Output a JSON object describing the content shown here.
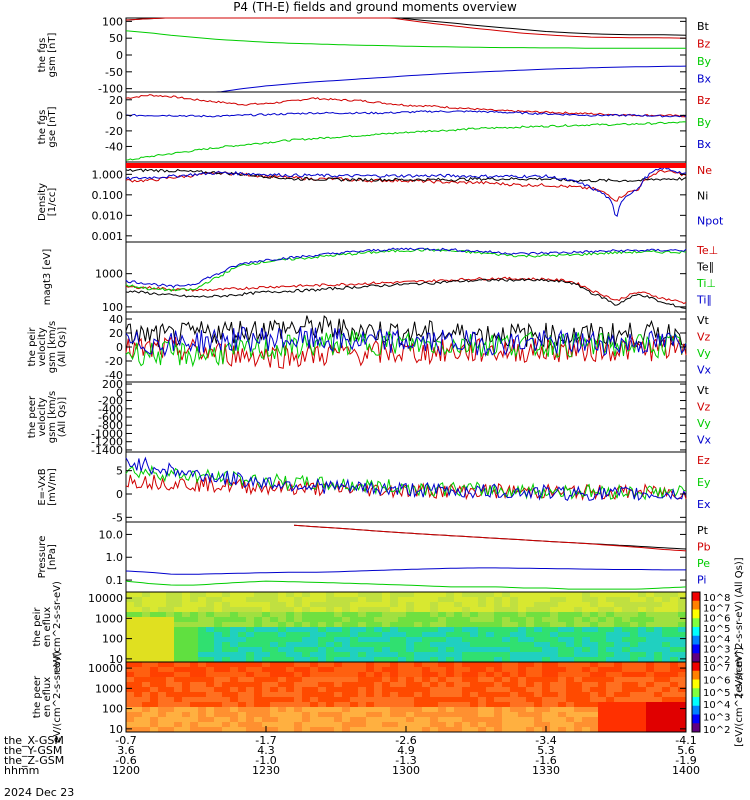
{
  "title": "P4 (TH-E) fields and ground moments overview",
  "chart_data": [
    {
      "type": "line",
      "name": "fgs_gsm",
      "ylabel": "the fgs gsm [nT]",
      "ylim": [
        -110,
        110
      ],
      "yticks": [
        "100",
        "50",
        "0",
        "-50",
        "-100"
      ],
      "ytick_values": [
        100,
        50,
        0,
        -50,
        -100
      ],
      "series": [
        {
          "name": "Bt",
          "color": "#000000",
          "values": [
            104,
            108,
            111,
            113,
            116,
            119,
            122,
            124,
            126,
            127,
            124,
            117,
            108,
            101,
            95,
            88,
            82,
            76,
            70,
            66,
            63,
            61,
            60,
            60,
            59
          ]
        },
        {
          "name": "Bz",
          "color": "#d00000",
          "values": [
            104,
            108,
            111,
            113,
            116,
            119,
            122,
            124,
            126,
            127,
            122,
            114,
            104,
            95,
            87,
            79,
            72,
            65,
            60,
            56,
            53,
            52,
            51,
            51,
            50
          ]
        },
        {
          "name": "By",
          "color": "#00cc00",
          "values": [
            72,
            66,
            58,
            52,
            46,
            42,
            38,
            35,
            33,
            31,
            29,
            28,
            26,
            25,
            24,
            23,
            22,
            22,
            21,
            21,
            20,
            20,
            20,
            20,
            20
          ]
        },
        {
          "name": "Bx",
          "color": "#0000cc",
          "values": [
            -112,
            -112,
            -111,
            -111,
            -110,
            -100,
            -92,
            -86,
            -80,
            -76,
            -71,
            -67,
            -62,
            -58,
            -54,
            -51,
            -48,
            -45,
            -42,
            -40,
            -38,
            -36,
            -35,
            -34,
            -33
          ]
        }
      ]
    },
    {
      "type": "line",
      "name": "fgs_gse",
      "ylabel": "the fgs gse [nT]",
      "ylim": [
        -60,
        30
      ],
      "yticks": [
        "20",
        "0",
        "-20",
        "-40"
      ],
      "ytick_values": [
        20,
        0,
        -20,
        -40
      ],
      "series": [
        {
          "name": "Bz",
          "color": "#d00000",
          "values": [
            22,
            26,
            24,
            20,
            17,
            14,
            15,
            18,
            22,
            20,
            19,
            16,
            13,
            12,
            10,
            8,
            6,
            5,
            4,
            3,
            2,
            1,
            0,
            0,
            -1
          ]
        },
        {
          "name": "By",
          "color": "#00cc00",
          "values": [
            -58,
            -53,
            -49,
            -45,
            -41,
            -38,
            -35,
            -32,
            -30,
            -28,
            -26,
            -24,
            -22,
            -20,
            -19,
            -17,
            -16,
            -15,
            -14,
            -13,
            -12,
            -12,
            -11,
            -10,
            -9
          ]
        },
        {
          "name": "Bx",
          "color": "#0000cc",
          "values": [
            0,
            0,
            0,
            -1,
            -1,
            0,
            1,
            2,
            3,
            3,
            3,
            3,
            4,
            5,
            5,
            5,
            4,
            3,
            2,
            1,
            0,
            0,
            0,
            -1,
            -1
          ]
        }
      ]
    },
    {
      "type": "line",
      "name": "density",
      "ylabel": "Density [1/cc]",
      "log": true,
      "ylim": [
        0.0005,
        4
      ],
      "yticks": [
        "1.000",
        "0.100",
        "0.010",
        "0.001"
      ],
      "ytick_values": [
        1,
        0.1,
        0.01,
        0.001
      ],
      "series": [
        {
          "name": "Ne",
          "color": "#d00000",
          "values": [
            0.5,
            0.5,
            0.7,
            0.9,
            1.2,
            1.0,
            0.8,
            0.7,
            0.6,
            0.6,
            0.5,
            0.5,
            0.5,
            0.45,
            0.4,
            0.4,
            0.35,
            0.3,
            0.3,
            0.25,
            0.2,
            0.05,
            0.2,
            1.5,
            0.9
          ]
        },
        {
          "name": "Ni",
          "color": "#000000",
          "values": [
            1.5,
            1.6,
            1.5,
            1.3,
            1.2,
            1.0,
            0.8,
            0.6,
            0.6,
            0.55,
            0.55,
            0.55,
            0.55,
            0.55,
            0.55,
            0.6,
            0.6,
            0.6,
            0.6,
            0.5,
            0.5,
            0.5,
            0.5,
            0.6,
            0.6
          ]
        },
        {
          "name": "Npot",
          "color": "#0000cc",
          "values": [
            0.6,
            0.7,
            0.8,
            1.0,
            1.2,
            1.1,
            1.0,
            0.9,
            0.9,
            0.85,
            0.85,
            0.85,
            0.85,
            0.85,
            0.85,
            0.8,
            0.8,
            0.8,
            0.8,
            0.5,
            0.2,
            0.0007,
            0.2,
            2.0,
            1.0
          ]
        }
      ]
    },
    {
      "type": "line",
      "name": "temperature",
      "ylabel": "magt3 [eV]",
      "log": true,
      "ylim": [
        70,
        9000
      ],
      "yticks": [
        "1000",
        "100"
      ],
      "ytick_values": [
        1000,
        100
      ],
      "series": [
        {
          "name": "Te⊥",
          "color": "#d00000",
          "values": [
            400,
            380,
            340,
            320,
            330,
            360,
            400,
            420,
            440,
            470,
            500,
            530,
            560,
            600,
            650,
            700,
            720,
            700,
            680,
            600,
            300,
            150,
            280,
            180,
            130
          ]
        },
        {
          "name": "Te∥",
          "color": "#000000",
          "values": [
            300,
            260,
            220,
            200,
            210,
            240,
            280,
            300,
            320,
            360,
            400,
            440,
            480,
            520,
            580,
            620,
            650,
            640,
            620,
            550,
            250,
            110,
            240,
            130,
            90
          ]
        },
        {
          "name": "Ti⊥",
          "color": "#00cc00",
          "values": [
            450,
            350,
            320,
            330,
            800,
            1800,
            2300,
            2700,
            3100,
            3600,
            4100,
            4600,
            5000,
            5200,
            4800,
            4300,
            3800,
            3400,
            3500,
            3600,
            4000,
            4300,
            4500,
            4500,
            4500
          ]
        },
        {
          "name": "Ti∥",
          "color": "#0000cc",
          "values": [
            600,
            500,
            400,
            500,
            1000,
            2000,
            2600,
            3000,
            3500,
            4100,
            4700,
            5200,
            5600,
            5600,
            5200,
            4800,
            4300,
            4000,
            4200,
            4400,
            4600,
            4900,
            5000,
            5100,
            5100
          ]
        }
      ]
    },
    {
      "type": "line",
      "name": "peir_velocity",
      "ylabel": "the peir velocity gsm [km/s (All Qs)]",
      "ylim": [
        -50,
        50
      ],
      "yticks": [
        "40",
        "20",
        "0",
        "-20",
        "-40"
      ],
      "ytick_values": [
        40,
        20,
        0,
        -20,
        -40
      ],
      "series": [
        {
          "name": "Vt",
          "color": "#000000",
          "values": [
            18,
            16,
            15,
            19,
            22,
            24,
            26,
            27,
            28,
            26,
            24,
            22,
            21,
            20,
            19,
            18,
            18,
            17,
            17,
            16,
            17,
            18,
            18,
            19,
            20
          ]
        },
        {
          "name": "Vz",
          "color": "#d00000",
          "values": [
            -5,
            -4,
            -3,
            -6,
            -9,
            -11,
            -12,
            -13,
            -11,
            -10,
            -9,
            -8,
            -8,
            -7,
            -6,
            -6,
            -5,
            -5,
            -5,
            -4,
            -4,
            -3,
            -3,
            -2,
            -2
          ]
        },
        {
          "name": "Vy",
          "color": "#00cc00",
          "values": [
            -8,
            -9,
            -10,
            -11,
            -9,
            -6,
            -3,
            0,
            3,
            5,
            6,
            6,
            5,
            4,
            4,
            4,
            4,
            4,
            3,
            3,
            3,
            2,
            2,
            2,
            2
          ]
        },
        {
          "name": "Vx",
          "color": "#0000cc",
          "values": [
            5,
            5,
            6,
            8,
            10,
            11,
            12,
            11,
            10,
            9,
            8,
            8,
            7,
            7,
            7,
            6,
            6,
            6,
            6,
            6,
            6,
            6,
            6,
            6,
            6
          ]
        }
      ]
    },
    {
      "type": "line",
      "name": "peer_velocity",
      "ylabel": "the peer velocity gsm [km/s (All Qs)]",
      "ylim": [
        -1450,
        250
      ],
      "yticks": [
        "200",
        "0",
        "-200",
        "-400",
        "-600",
        "-800",
        "-1000",
        "-1200",
        "-1400"
      ],
      "ytick_values": [
        200,
        0,
        -200,
        -400,
        -600,
        -800,
        -1000,
        -1200,
        -1400
      ],
      "series": [
        {
          "name": "Vt",
          "color": "#000000",
          "values": []
        },
        {
          "name": "Vz",
          "color": "#d00000",
          "values": []
        },
        {
          "name": "Vy",
          "color": "#00cc00",
          "values": []
        },
        {
          "name": "Vx",
          "color": "#0000cc",
          "values": []
        }
      ]
    },
    {
      "type": "line",
      "name": "efield",
      "ylabel": "E=-VxB [mV/m]",
      "ylim": [
        -6,
        9
      ],
      "yticks": [
        "5",
        "0",
        "-5"
      ],
      "ytick_values": [
        5,
        0,
        -5
      ],
      "series": [
        {
          "name": "Ez",
          "color": "#d00000",
          "values": [
            3.0,
            2.7,
            2.4,
            2.1,
            1.9,
            1.7,
            1.5,
            1.3,
            1.2,
            1.1,
            1.0,
            0.9,
            0.8,
            0.7,
            0.7,
            0.6,
            0.6,
            0.5,
            0.5,
            0.5,
            0.4,
            0.4,
            0.4,
            0.4,
            0.3
          ]
        },
        {
          "name": "Ey",
          "color": "#00cc00",
          "values": [
            5.0,
            4.7,
            4.3,
            3.9,
            3.5,
            3.1,
            2.8,
            2.5,
            2.2,
            2.0,
            1.8,
            1.6,
            1.4,
            1.2,
            1.0,
            0.9,
            0.8,
            0.7,
            0.6,
            0.6,
            0.5,
            0.5,
            0.4,
            0.4,
            0.3
          ]
        },
        {
          "name": "Ex",
          "color": "#0000cc",
          "values": [
            7.0,
            6.0,
            5.0,
            4.2,
            3.5,
            3.0,
            2.5,
            2.1,
            1.8,
            1.5,
            1.3,
            1.1,
            1.0,
            0.8,
            0.7,
            0.6,
            0.5,
            0.4,
            0.3,
            0.2,
            0.1,
            0.0,
            0.0,
            -0.1,
            -0.1
          ]
        }
      ]
    },
    {
      "type": "line",
      "name": "pressure",
      "ylabel": "Pressure [nPa]",
      "log": true,
      "ylim": [
        0.03,
        35
      ],
      "yticks": [
        "10.0",
        "1.0",
        "0.1"
      ],
      "ytick_values": [
        10,
        1,
        0.1
      ],
      "series": [
        {
          "name": "Pt",
          "color": "#000000",
          "values": [
            null,
            null,
            null,
            null,
            null,
            null,
            null,
            26,
            22,
            19,
            16,
            13.5,
            11.5,
            10,
            8.7,
            7.6,
            6.6,
            5.8,
            5.0,
            4.4,
            3.9,
            3.4,
            3.0,
            2.6,
            2.3
          ]
        },
        {
          "name": "Pb",
          "color": "#d00000",
          "values": [
            null,
            null,
            null,
            null,
            null,
            null,
            null,
            26,
            22,
            19,
            16,
            13.5,
            11.5,
            10,
            8.7,
            7.6,
            6.6,
            5.8,
            5.0,
            4.4,
            3.8,
            3.2,
            2.7,
            2.2,
            1.9
          ]
        },
        {
          "name": "Pe",
          "color": "#00cc00",
          "values": [
            0.09,
            0.07,
            0.06,
            0.06,
            0.07,
            0.08,
            0.09,
            0.085,
            0.08,
            0.075,
            0.07,
            0.065,
            0.06,
            0.055,
            0.05,
            0.05,
            0.05,
            0.045,
            0.045,
            0.04,
            0.04,
            0.04,
            0.04,
            0.045,
            0.05
          ]
        },
        {
          "name": "Pi",
          "color": "#0000cc",
          "values": [
            0.25,
            0.22,
            0.18,
            0.18,
            0.19,
            0.2,
            0.21,
            0.22,
            0.22,
            0.23,
            0.25,
            0.27,
            0.29,
            0.31,
            0.33,
            0.34,
            0.34,
            0.33,
            0.32,
            0.31,
            0.3,
            0.29,
            0.29,
            0.28,
            0.28
          ]
        }
      ]
    },
    {
      "type": "heatmap",
      "name": "peir_en_eflux",
      "ylabel": "the peir en eflux eV/(cm^2-s-sr-eV)",
      "yticks": [
        "10000",
        "1000",
        "100",
        "10"
      ],
      "ytick_values": [
        10000,
        1000,
        100,
        10
      ],
      "ylim": [
        7,
        20000
      ],
      "log": true,
      "colorbar": {
        "label": "[eV/(cm^2-s-sr-eV) (All Qs)]",
        "ticks": [
          "10^8",
          "10^7",
          "10^6",
          "10^5",
          "10^4",
          "10^3",
          "10^2"
        ],
        "range": [
          100,
          100000000
        ]
      }
    },
    {
      "type": "heatmap",
      "name": "peer_en_eflux",
      "ylabel": "the peer en eflux eV/(cm^2-s-sr-eV)",
      "yticks": [
        "10000",
        "1000",
        "100",
        "10"
      ],
      "ytick_values": [
        10000,
        1000,
        100,
        10
      ],
      "ylim": [
        7,
        20000
      ],
      "log": true,
      "colorbar": {
        "label": "[eV/(cm^2-s-sr-eV)]",
        "ticks": [
          "10^7",
          "10^6",
          "10^5",
          "10^4",
          "10^3",
          "10^2"
        ],
        "range": [
          100,
          10000000
        ]
      }
    }
  ],
  "x_axis": {
    "rows": [
      {
        "label": "the_X-GSM",
        "values": [
          "-0.7",
          "-1.7",
          "-2.6",
          "-3.4",
          "-4.1"
        ]
      },
      {
        "label": "the_Y-GSM",
        "values": [
          "3.6",
          "4.3",
          "4.9",
          "5.3",
          "5.6"
        ]
      },
      {
        "label": "the_Z-GSM",
        "values": [
          "-0.6",
          "-1.0",
          "-1.3",
          "-1.6",
          "-1.9"
        ]
      },
      {
        "label": "hhmm",
        "values": [
          "1200",
          "1230",
          "1300",
          "1330",
          "1400"
        ]
      }
    ],
    "date": "2024 Dec 23"
  }
}
